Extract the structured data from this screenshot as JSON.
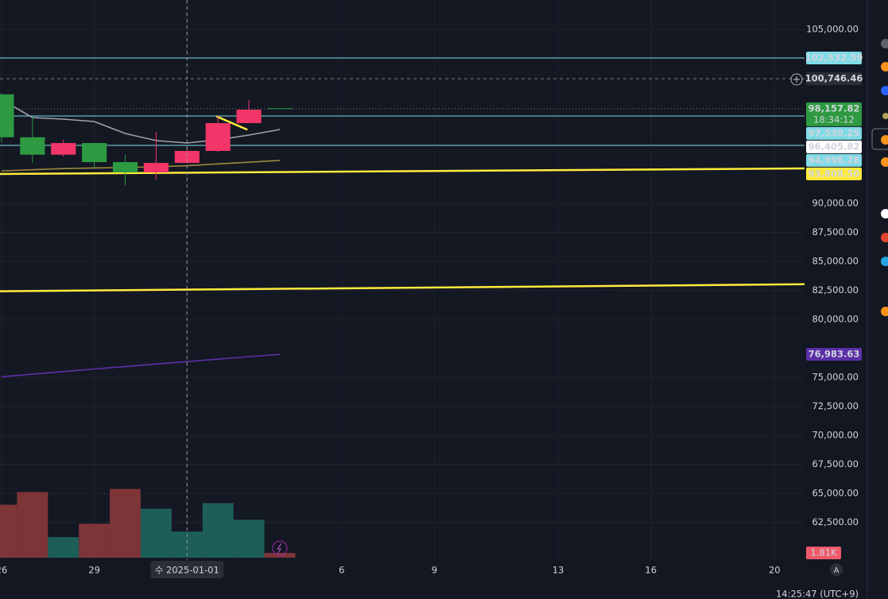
{
  "chart_data": {
    "type": "candlestick",
    "x": [
      0,
      1,
      2,
      3,
      4,
      5,
      6,
      7,
      8,
      9
    ],
    "open": [
      99400,
      95700,
      94200,
      95200,
      93560,
      92670,
      93490,
      94520,
      96920,
      98200
    ],
    "high": [
      99500,
      97470,
      95500,
      95200,
      94180,
      96160,
      94800,
      97530,
      98900,
      98210
    ],
    "low": [
      95300,
      93490,
      94050,
      93010,
      91580,
      92050,
      93450,
      94400,
      96900,
      98140
    ],
    "close": [
      95700,
      94200,
      95200,
      93560,
      92670,
      93490,
      94520,
      96920,
      98080,
      98157.82
    ],
    "up_color": "#f23669",
    "down_color": "#2e9a41",
    "volume": {
      "values": [
        20.1,
        24.9,
        7.8,
        12.9,
        26.1,
        18.6,
        9.9,
        20.7,
        14.4,
        1.81
      ],
      "value_labels": [
        null,
        null,
        null,
        null,
        null,
        null,
        null,
        null,
        null,
        "1.81K"
      ],
      "colors": [
        "#7d3538",
        "#7d3538",
        "#1d5e59",
        "#7d3538",
        "#7d3538",
        "#1d5e59",
        "#1d5e59",
        "#1d5e59",
        "#1d5e59",
        "#7d3538"
      ],
      "label_color": "#f05a6a",
      "lim": [
        0,
        30
      ]
    },
    "moving_averages": [
      {
        "color": "#9ea2ab",
        "values": [
          98950,
          97397,
          97260,
          97055,
          96027,
          95411,
          95205,
          95479,
          95890,
          96370
        ]
      },
      {
        "color": "#9b8a3c",
        "values": [
          92800,
          92900,
          93000,
          93050,
          93100,
          93150,
          93250,
          93400,
          93550,
          93700
        ]
      },
      {
        "color": "#5c2fa8",
        "values": [
          75050,
          75280,
          75500,
          75720,
          75930,
          76150,
          76360,
          76570,
          76780,
          76983.63
        ]
      }
    ],
    "trendlines": [
      {
        "color": "#ffeb3b",
        "x": [
          -0.05,
          25.97
        ],
        "y": [
          92530,
          93010
        ]
      },
      {
        "color": "#ffeb3b",
        "x": [
          -0.05,
          25.97
        ],
        "y": [
          82420,
          83030
        ]
      },
      {
        "color": "#ffeb3b",
        "x": [
          6.95,
          7.95
        ],
        "y": [
          97500,
          96350
        ]
      }
    ],
    "price_lines": [
      {
        "value": 102532.59,
        "label": "102,532.59",
        "color": "#7fdbe8",
        "text_color": "#131722",
        "line": "solid"
      },
      {
        "value": 100746.46,
        "label": "100,746.46",
        "color": "#2a2e39",
        "text_color": "#ffffff",
        "line": "dashed"
      },
      {
        "value": 98157.82,
        "label": "98,157.82",
        "color": "#2e9a41",
        "text_color": "#ffffff",
        "line": "dotted",
        "countdown": "18:34:12"
      },
      {
        "value": 97530.25,
        "label": "97,530.25",
        "color": "#7fdbe8",
        "text_color": "#131722",
        "line": "solid"
      },
      {
        "value": 96405.82,
        "label": "96,405.82",
        "color": "#ffffff",
        "text_color": "#131722",
        "line": "none"
      },
      {
        "value": 94998.28,
        "label": "94,998.28",
        "color": "#7fdbe8",
        "text_color": "#131722",
        "line": "solid"
      },
      {
        "value": 93808.5,
        "label": "93,808.50",
        "color": "#ffeb3b",
        "text_color": "#131722",
        "line": "none"
      },
      {
        "value": 76983.63,
        "label": "76,983.63",
        "color": "#5c2fa8",
        "text_color": "#ffffff",
        "line": "none"
      }
    ],
    "crosshair_x": 6,
    "ylim": [
      58425,
      107534
    ],
    "xlim": [
      -0.05,
      25.97
    ],
    "yticks": [
      {
        "value": 105000,
        "label": "105,000.00"
      },
      {
        "value": 90000,
        "label": "90,000.00"
      },
      {
        "value": 87500,
        "label": "87,500.00"
      },
      {
        "value": 85000,
        "label": "85,000.00"
      },
      {
        "value": 82500,
        "label": "82,500.00"
      },
      {
        "value": 80000,
        "label": "80,000.00"
      },
      {
        "value": 75000,
        "label": "75,000.00"
      },
      {
        "value": 72500,
        "label": "72,500.00"
      },
      {
        "value": 70000,
        "label": "70,000.00"
      },
      {
        "value": 67500,
        "label": "67,500.00"
      },
      {
        "value": 65000,
        "label": "65,000.00"
      },
      {
        "value": 62500,
        "label": "62,500.00"
      }
    ],
    "xticks": [
      {
        "value": 0,
        "label": "26"
      },
      {
        "value": 3,
        "label": "29"
      },
      {
        "value": 6,
        "label": "수 2025-01-01"
      },
      {
        "value": 11,
        "label": "6"
      },
      {
        "value": 14,
        "label": "9"
      },
      {
        "value": 18,
        "label": "13"
      },
      {
        "value": 21,
        "label": "16"
      },
      {
        "value": 25,
        "label": "20"
      }
    ],
    "grid": true,
    "clock": "14:25:47 (UTC+9)",
    "scale_button": "A"
  }
}
